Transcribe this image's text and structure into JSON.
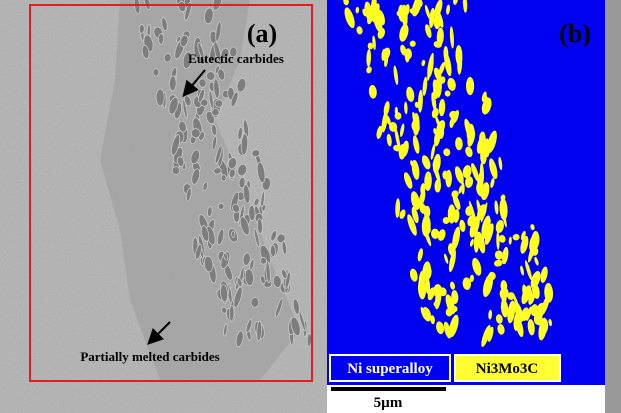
{
  "panel_a": {
    "label": "(a)",
    "annotations": [
      "Eutectic carbides",
      "Partially melted carbides"
    ]
  },
  "panel_b": {
    "label": "(b)",
    "legend": [
      "Ni superalloy",
      "Ni3Mo3C"
    ],
    "scale_bar": "5µm"
  }
}
